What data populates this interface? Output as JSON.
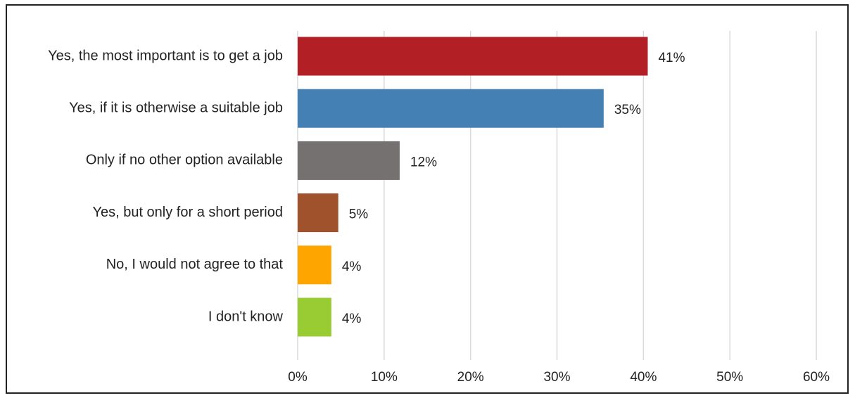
{
  "chart_data": {
    "type": "bar",
    "orientation": "horizontal",
    "title": "",
    "xlabel": "",
    "ylabel": "",
    "categories": [
      "Yes, the most important is to get a job",
      "Yes, if it is otherwise a suitable job",
      "Only if no other option available",
      "Yes, but only for a short period",
      "No, I would not agree to that",
      "I don't know"
    ],
    "values": [
      40.5,
      35.4,
      11.8,
      4.7,
      3.9,
      3.9
    ],
    "data_labels": [
      "41%",
      "35%",
      "12%",
      "5%",
      "4%",
      "4%"
    ],
    "colors": [
      "#b22025",
      "#4480b3",
      "#757170",
      "#a0522d",
      "#ffa500",
      "#99cc33"
    ],
    "xlim": [
      0,
      60
    ],
    "x_ticks": [
      0,
      10,
      20,
      30,
      40,
      50,
      60
    ],
    "x_tick_labels": [
      "0%",
      "10%",
      "20%",
      "30%",
      "40%",
      "50%",
      "60%"
    ],
    "grid": true,
    "legend": "none"
  }
}
